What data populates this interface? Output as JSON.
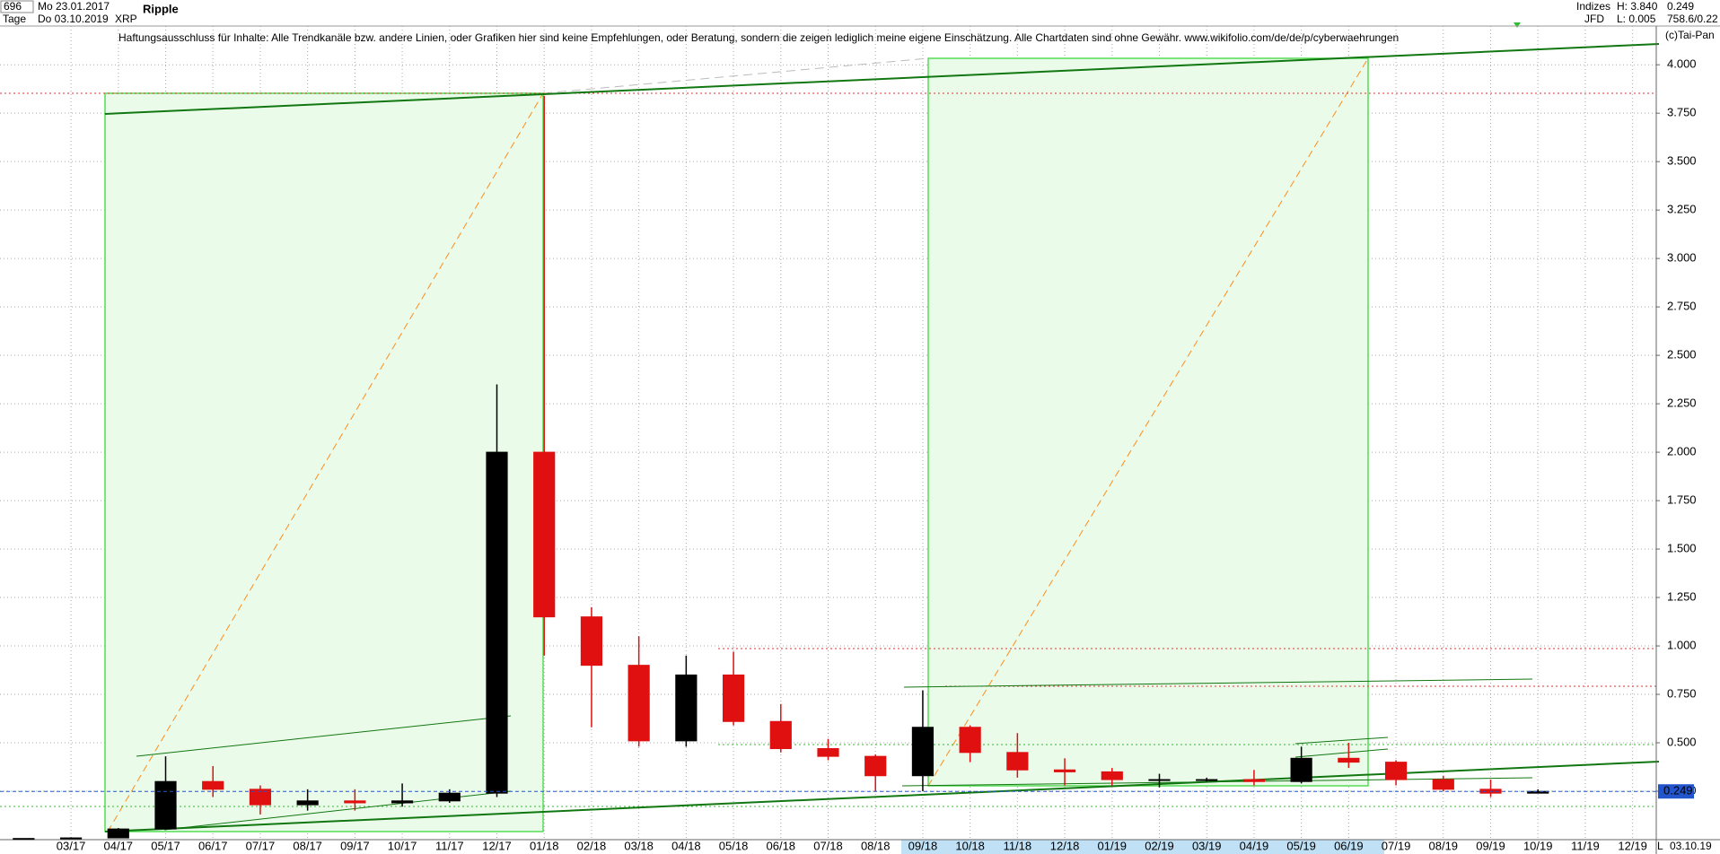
{
  "header": {
    "count": "696",
    "start_date": "Mo 23.01.2017",
    "period": "Tage",
    "end_date": "Do 03.10.2019",
    "name": "Ripple",
    "symbol": "XRP",
    "group": "Indizes",
    "broker": "JFD",
    "high": "H: 3.840",
    "low": "L: 0.005",
    "scale_info": "758.6/0.22",
    "copyright": "(c)Tai-Pan",
    "disclaimer": "Haftungsausschluss für Inhalte: Alle Trendkanäle bzw. andere Linien, oder Grafiken hier sind keine Empfehlungen, oder Beratung, sondern die zeigen lediglich meine eigene Einschätzung. Alle Chartdaten sind ohne Gewähr.  www.wikifolio.com/de/de/p/cyberwaehrungen"
  },
  "chart_data": {
    "type": "candlestick",
    "categories": [
      null,
      "03/17",
      "04/17",
      "05/17",
      "06/17",
      "07/17",
      "08/17",
      "09/17",
      "10/17",
      "11/17",
      "12/17",
      "01/18",
      "02/18",
      "03/18",
      "04/18",
      "05/18",
      "06/18",
      "07/18",
      "08/18",
      "09/18",
      "10/18",
      "11/18",
      "12/18",
      "01/19",
      "02/19",
      "03/19",
      "04/19",
      "05/19",
      "06/19",
      "07/19",
      "08/19",
      "09/19",
      "10/19",
      "11/19",
      "12/19"
    ],
    "open": [
      0.006,
      0.006,
      0.009,
      0.055,
      0.3,
      0.26,
      0.18,
      0.2,
      0.19,
      0.2,
      0.24,
      2.0,
      1.15,
      0.9,
      0.51,
      0.85,
      0.61,
      0.47,
      0.43,
      0.33,
      0.58,
      0.45,
      0.36,
      0.35,
      0.31,
      0.31,
      0.31,
      0.3,
      0.42,
      0.4,
      0.31,
      0.26,
      0.24,
      null,
      null
    ],
    "high": [
      0.007,
      0.012,
      0.06,
      0.43,
      0.38,
      0.28,
      0.26,
      0.26,
      0.29,
      0.26,
      2.35,
      3.84,
      1.2,
      1.05,
      0.95,
      0.97,
      0.7,
      0.52,
      0.44,
      0.77,
      0.59,
      0.55,
      0.42,
      0.37,
      0.34,
      0.32,
      0.36,
      0.48,
      0.5,
      0.41,
      0.33,
      0.31,
      0.26,
      null,
      null
    ],
    "low": [
      0.005,
      0.005,
      0.008,
      0.05,
      0.22,
      0.13,
      0.15,
      0.15,
      0.17,
      0.19,
      0.22,
      0.95,
      0.58,
      0.48,
      0.48,
      0.59,
      0.45,
      0.41,
      0.25,
      0.25,
      0.4,
      0.32,
      0.28,
      0.28,
      0.27,
      0.3,
      0.28,
      0.29,
      0.37,
      0.28,
      0.25,
      0.22,
      0.24,
      null,
      null
    ],
    "close": [
      0.006,
      0.009,
      0.055,
      0.3,
      0.26,
      0.18,
      0.2,
      0.19,
      0.2,
      0.24,
      2.0,
      1.15,
      0.9,
      0.51,
      0.85,
      0.61,
      0.47,
      0.43,
      0.33,
      0.58,
      0.45,
      0.36,
      0.35,
      0.31,
      0.31,
      0.31,
      0.3,
      0.42,
      0.4,
      0.31,
      0.26,
      0.24,
      0.249,
      null,
      null
    ],
    "up_color": "#000000",
    "down_color": "#e01010",
    "ylim": [
      0,
      4.2
    ],
    "yticks": [
      {
        "value": 0.25,
        "label": "0.250"
      },
      {
        "value": 0.5,
        "label": "0.500"
      },
      {
        "value": 0.75,
        "label": "0.750"
      },
      {
        "value": 1,
        "label": "1.000"
      },
      {
        "value": 1.25,
        "label": "1.250"
      },
      {
        "value": 1.5,
        "label": "1.500"
      },
      {
        "value": 1.75,
        "label": "1.750"
      },
      {
        "value": 2,
        "label": "2.000"
      },
      {
        "value": 2.25,
        "label": "2.250"
      },
      {
        "value": 2.5,
        "label": "2.500"
      },
      {
        "value": 2.75,
        "label": "2.750"
      },
      {
        "value": 3,
        "label": "3.000"
      },
      {
        "value": 3.25,
        "label": "3.250"
      },
      {
        "value": 3.5,
        "label": "3.500"
      },
      {
        "value": 3.75,
        "label": "3.750"
      },
      {
        "value": 4,
        "label": "4.000"
      }
    ],
    "grid": true,
    "last_price": 0.249,
    "scale_mode": "L",
    "footer_date": "03.10.19"
  }
}
